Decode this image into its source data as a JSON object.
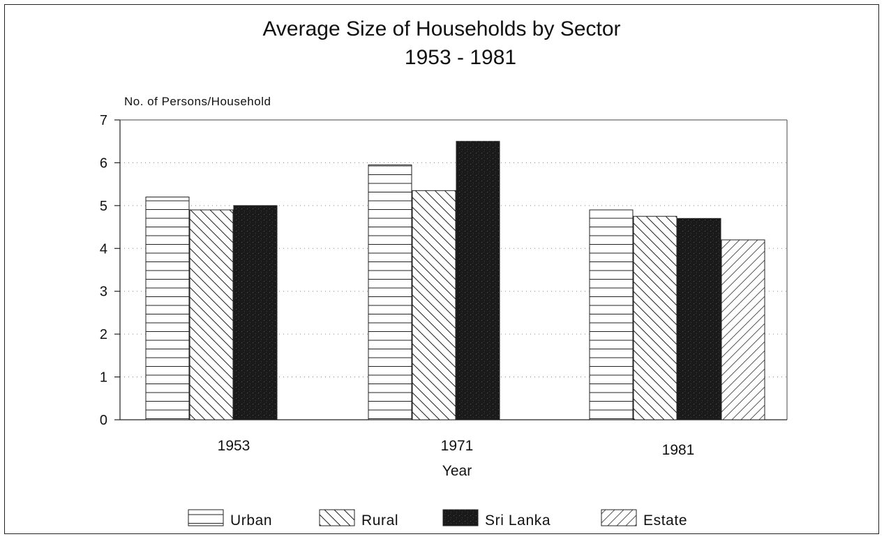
{
  "chart_data": {
    "type": "bar",
    "title": "Average Size of Households by Sector",
    "subtitle": "1953 - 1981",
    "xlabel": "Year",
    "ylabel": "No. of Persons/Household",
    "categories": [
      "1953",
      "1971",
      "1981"
    ],
    "ylim": [
      0,
      7
    ],
    "yticks": [
      0,
      1,
      2,
      3,
      4,
      5,
      6,
      7
    ],
    "grid": "horizontal dotted",
    "legend_position": "bottom",
    "series": [
      {
        "name": "Urban",
        "values": [
          5.2,
          5.95,
          4.9
        ],
        "pattern": "horizontal-lines"
      },
      {
        "name": "Rural",
        "values": [
          4.9,
          5.35,
          4.75
        ],
        "pattern": "diagonal-back"
      },
      {
        "name": "Sri Lanka",
        "values": [
          5.0,
          6.5,
          4.7
        ],
        "pattern": "solid-dark"
      },
      {
        "name": "Estate",
        "values": [
          null,
          null,
          4.2
        ],
        "pattern": "diagonal-forward"
      }
    ]
  }
}
